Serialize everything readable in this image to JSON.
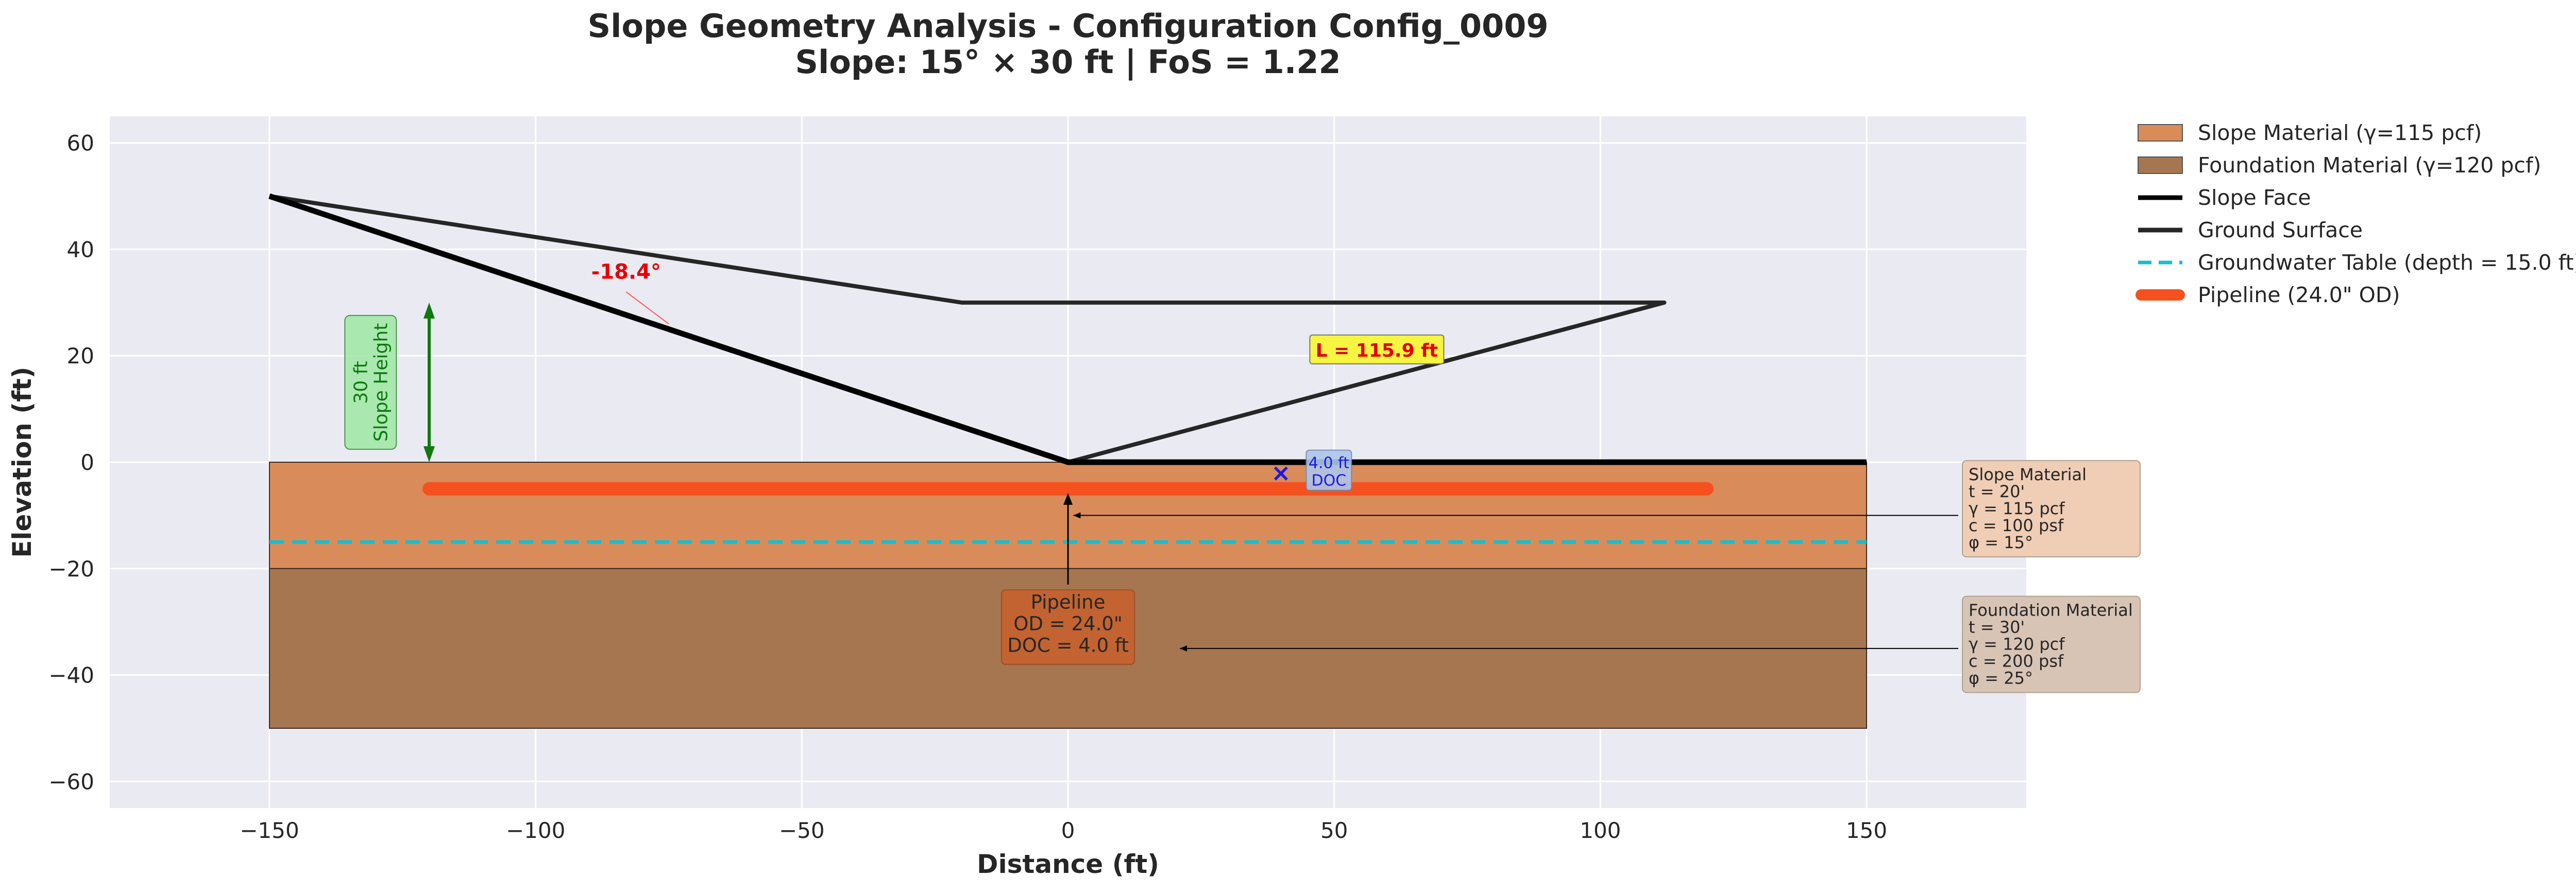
{
  "chart_data": {
    "type": "line",
    "title": "Slope Geometry Analysis - Configuration Config_0009",
    "subtitle": "Slope: 15° × 30 ft | FoS = 1.22",
    "xlabel": "Distance (ft)",
    "ylabel": "Elevation (ft)",
    "xlim": [
      -180,
      180
    ],
    "ylim": [
      -65,
      65
    ],
    "x_ticks": [
      "−150",
      "−100",
      "−50",
      "0",
      "50",
      "100",
      "150"
    ],
    "x_tick_values": [
      -150,
      -100,
      -50,
      0,
      50,
      100,
      150
    ],
    "y_ticks": [
      "60",
      "40",
      "20",
      "0",
      "−20",
      "−40",
      "−60"
    ],
    "y_tick_values": [
      60,
      40,
      20,
      0,
      -20,
      -40,
      -60
    ],
    "grid": true,
    "legend_position": "outside-right",
    "layers": [
      {
        "name": "Slope Material (γ=115 pcf)",
        "x": [
          -150,
          150
        ],
        "y_top": 0,
        "y_bottom": -20,
        "color": "#d98c5a"
      },
      {
        "name": "Foundation Material (γ=120 pcf)",
        "x": [
          -150,
          150
        ],
        "y_top": -20,
        "y_bottom": -50,
        "color": "#a67650"
      }
    ],
    "series": [
      {
        "name": "Slope Face",
        "x": [
          -150,
          0,
          150
        ],
        "y": [
          50,
          0,
          0
        ],
        "color": "#000000"
      },
      {
        "name": "Ground Surface",
        "x": [
          -150,
          -20,
          112,
          0
        ],
        "y": [
          50,
          30,
          30,
          0
        ],
        "color": "#262626"
      },
      {
        "name": "Groundwater Table (depth = 15.0 ft)",
        "x": [
          -150,
          150
        ],
        "y": [
          -15,
          -15
        ],
        "color": "#17becf"
      },
      {
        "name": "Pipeline (24.0\" OD)",
        "x": [
          -120,
          120
        ],
        "y": [
          -5,
          -5
        ],
        "color": "#f4511e"
      }
    ],
    "legend": [
      {
        "label": "Slope Material (γ=115 pcf)",
        "kind": "patch",
        "color": "#d98c5a"
      },
      {
        "label": "Foundation Material (γ=120 pcf)",
        "kind": "patch",
        "color": "#a67650"
      },
      {
        "label": "Slope Face",
        "kind": "line",
        "color": "#000000"
      },
      {
        "label": "Ground Surface",
        "kind": "line",
        "color": "#262626"
      },
      {
        "label": "Groundwater Table (depth = 15.0 ft)",
        "kind": "dashed",
        "color": "#17becf"
      },
      {
        "label": "Pipeline (24.0\" OD)",
        "kind": "thick",
        "color": "#f4511e"
      }
    ],
    "annotations": {
      "angle_label": "-18.4°",
      "length_label": "L = 115.9 ft",
      "height_label_1": "30 ft",
      "height_label_2": "Slope Height",
      "doc_label_1": "4.0 ft",
      "doc_label_2": "DOC",
      "doc_marker": "×",
      "pipeline_label": [
        "Pipeline",
        "OD = 24.0\"",
        "DOC = 4.0 ft"
      ],
      "slope_info": [
        "Slope Material",
        "t = 20'",
        "γ = 115 pcf",
        "c = 100 psf",
        "φ = 15°"
      ],
      "foundation_info": [
        "Foundation Material",
        "t = 30'",
        "γ = 120 pcf",
        "c = 200 psf",
        "φ = 25°"
      ]
    }
  }
}
